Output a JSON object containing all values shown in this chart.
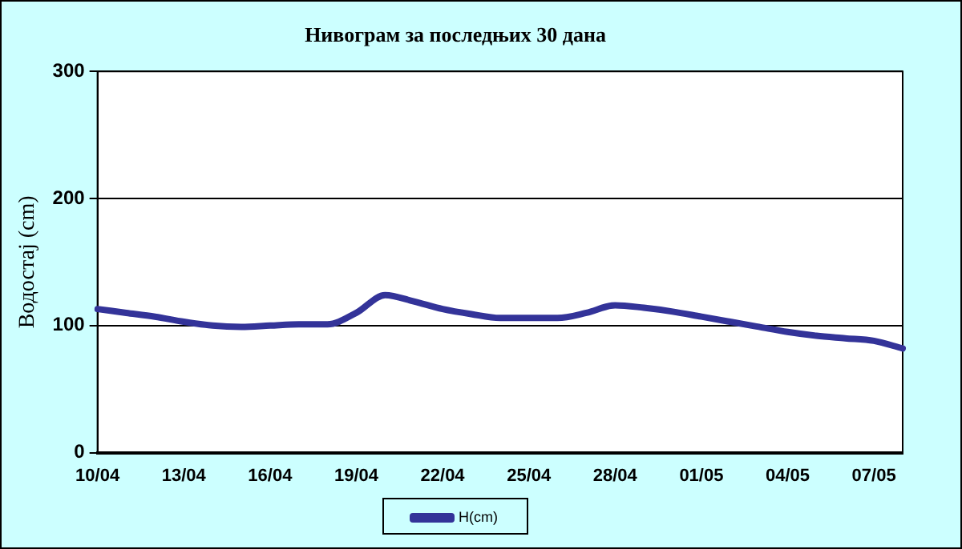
{
  "chart_data": {
    "type": "line",
    "title": "Нивограм за последњих 30 дана",
    "ylabel": "Водостај (cm)",
    "categories": [
      "10/04",
      null,
      null,
      "13/04",
      null,
      null,
      "16/04",
      null,
      null,
      "19/04",
      null,
      null,
      "22/04",
      null,
      null,
      "25/04",
      null,
      null,
      "28/04",
      null,
      null,
      "01/05",
      null,
      null,
      "04/05",
      null,
      null,
      "07/05",
      null
    ],
    "series": [
      {
        "name": "H(cm)",
        "color": "#333399",
        "values": [
          113,
          110,
          107,
          103,
          100,
          99,
          100,
          101,
          101,
          110,
          124,
          119,
          113,
          109,
          106,
          106,
          106,
          110,
          116,
          114,
          111,
          107,
          103,
          99,
          95,
          92,
          90,
          88,
          82
        ]
      }
    ],
    "ylim": [
      0,
      300
    ],
    "yticks": [
      0,
      100,
      200,
      300
    ],
    "grid": "y",
    "legend": "bottom",
    "marker": "none",
    "line_style": "solid"
  }
}
